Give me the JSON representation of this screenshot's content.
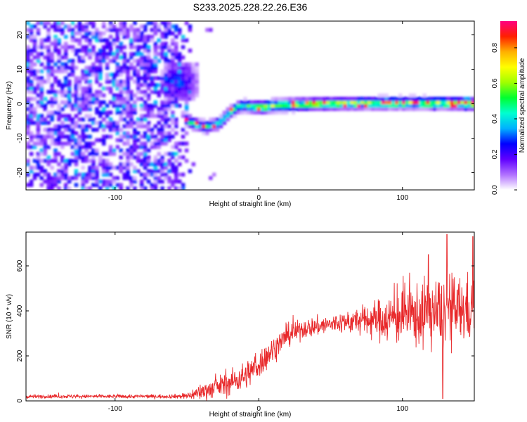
{
  "title": "S233.2025.228.22.26.E36",
  "chart_data": [
    {
      "type": "heatmap",
      "title": "S233.2025.228.22.26.E36",
      "xlabel": "Height of straight line (km)",
      "ylabel": "Frequency (Hz)",
      "xlim": [
        -162,
        150
      ],
      "ylim": [
        -25,
        24
      ],
      "x_ticks": [
        "-100",
        "0",
        "100"
      ],
      "y_ticks": [
        "-20",
        "-10",
        "0",
        "10",
        "20"
      ],
      "colorbar": {
        "label": "Normalized spectral amplitude",
        "range": [
          0.0,
          0.95
        ],
        "ticks": [
          "0.0",
          "0.2",
          "0.4",
          "0.6",
          "0.8"
        ],
        "colors": [
          "#ffffff",
          "#b070ff",
          "#6000ff",
          "#0000ff",
          "#00b0ff",
          "#00ffd0",
          "#00ff30",
          "#a0ff00",
          "#ffff00",
          "#ffb000",
          "#ff2000",
          "#ff0080"
        ]
      },
      "signal_track": {
        "x": [
          -52,
          -48,
          -44,
          -40,
          -36,
          -32,
          -28,
          -24,
          -20,
          -16,
          -12,
          -8,
          -4,
          0,
          10,
          20,
          40,
          60,
          80,
          100,
          120,
          140,
          150
        ],
        "freq": [
          -5,
          -6,
          -6.5,
          -7,
          -7,
          -6.5,
          -6,
          -4,
          -2.5,
          -1.5,
          -1,
          -1.2,
          -1.5,
          -1.5,
          -1,
          -0.8,
          -0.5,
          -0.3,
          -0.2,
          -0.2,
          -0.2,
          -0.3,
          -0.5
        ]
      },
      "noise_region": {
        "x": [
          -162,
          -48
        ],
        "freq": [
          -25,
          24
        ]
      },
      "blob": {
        "x": [
          -68,
          -44
        ],
        "freq": [
          0,
          12
        ]
      }
    },
    {
      "type": "line",
      "xlabel": "Height of straight line (km)",
      "ylabel": "SNR (10 * v/v)",
      "xlim": [
        -162,
        150
      ],
      "ylim": [
        0,
        750
      ],
      "x_ticks": [
        "-100",
        "0",
        "100"
      ],
      "y_ticks": [
        "0",
        "200",
        "400",
        "600"
      ],
      "color": "#e8282a",
      "envelope": {
        "x": [
          -162,
          -60,
          -50,
          -40,
          -30,
          -20,
          -10,
          0,
          10,
          20,
          30,
          40,
          50,
          60,
          70,
          80,
          90,
          100,
          110,
          120,
          130,
          140,
          150
        ],
        "mean": [
          20,
          20,
          22,
          40,
          60,
          80,
          110,
          160,
          230,
          290,
          320,
          330,
          340,
          350,
          355,
          360,
          365,
          380,
          380,
          390,
          390,
          400,
          410
        ],
        "amp": [
          7,
          8,
          14,
          35,
          40,
          50,
          55,
          60,
          50,
          45,
          40,
          40,
          40,
          45,
          55,
          75,
          95,
          120,
          130,
          140,
          150,
          140,
          130
        ]
      },
      "peaks": [
        {
          "x": 131,
          "y": 740
        },
        {
          "x": 118,
          "y": 650
        },
        {
          "x": 128,
          "y": 10
        },
        {
          "x": 149,
          "y": 730
        }
      ]
    }
  ]
}
